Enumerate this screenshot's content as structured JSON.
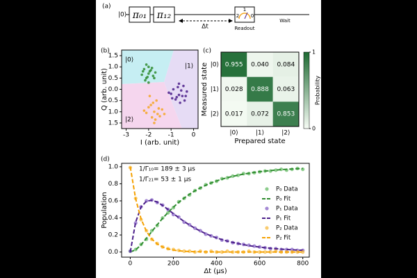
{
  "panels": [
    "(a)",
    "(b)",
    "(c)",
    "(d)"
  ],
  "circuit": {
    "input": "|0⟩",
    "gates": [
      "π₀₁",
      "π₁₂"
    ],
    "delay": "Δt",
    "readout": "Readout",
    "readout_levels": [
      "2",
      "1",
      "0"
    ],
    "wait": "Wait"
  },
  "chart_data": [
    {
      "type": "scatter",
      "xlabel": "I (arb. unit)",
      "ylabel": "Q (arb. unit)",
      "region_labels": [
        "|0⟩",
        "|1⟩",
        "|2⟩"
      ],
      "xlim": [
        -3.2,
        0.2
      ],
      "xticks": [
        -3,
        -2,
        -1,
        0
      ],
      "ylim": [
        -1.75,
        1.75
      ],
      "yticks": [
        1.5,
        {
          "value": 1.0,
          "label": "1.0"
        },
        0.5,
        {
          "value": 0.0,
          "label": "0.0"
        },
        {
          "value": -0.5,
          "label": "0.5"
        },
        {
          "value": -1.0,
          "label": "1.0"
        },
        {
          "value": -1.5,
          "label": "1.5"
        }
      ],
      "series": [
        {
          "color": "#2e8b2e",
          "x": [
            -2.0,
            -2.2,
            -1.8,
            -2.1,
            -1.9,
            -2.3,
            -1.7,
            -2.0,
            -2.15,
            -1.85,
            -2.05,
            -1.95,
            -2.25,
            -1.75,
            -2.0,
            -2.1
          ],
          "y": [
            0.7,
            0.9,
            0.6,
            0.5,
            0.85,
            0.65,
            0.75,
            1.0,
            0.4,
            0.95,
            0.55,
            0.8,
            0.8,
            0.5,
            0.3,
            1.1
          ]
        },
        {
          "color": "#4b1f8a",
          "x": [
            -0.65,
            -0.9,
            -0.4,
            -0.7,
            -0.5,
            -1.0,
            -0.3,
            -0.6,
            -0.8,
            -0.45,
            -0.75,
            -0.55,
            -0.95,
            -0.35,
            -0.65,
            -1.1
          ],
          "y": [
            -0.25,
            0.0,
            -0.5,
            0.1,
            -0.3,
            -0.2,
            -0.1,
            -0.6,
            -0.45,
            0.15,
            -0.35,
            -0.05,
            -0.4,
            -0.3,
            0.25,
            -0.15
          ]
        },
        {
          "color": "#f5a623",
          "x": [
            -1.75,
            -2.0,
            -1.5,
            -1.8,
            -1.6,
            -2.1,
            -1.4,
            -1.7,
            -1.9,
            -1.55,
            -1.85,
            -1.65,
            -2.2,
            -1.3,
            -1.75,
            -1.95
          ],
          "y": [
            -1.0,
            -0.8,
            -1.2,
            -0.6,
            -1.1,
            -1.05,
            -0.9,
            -1.35,
            -0.7,
            -0.85,
            -1.25,
            -0.5,
            -0.95,
            -1.1,
            -1.5,
            -0.3
          ]
        }
      ]
    },
    {
      "type": "heatmap",
      "xlabel": "Prepared state",
      "ylabel": "Measured state",
      "x_categories": [
        "|0⟩",
        "|1⟩",
        "|2⟩"
      ],
      "y_categories": [
        "|0⟩",
        "|1⟩",
        "|2⟩"
      ],
      "values": [
        [
          0.955,
          0.04,
          0.084
        ],
        [
          0.028,
          0.888,
          0.063
        ],
        [
          0.017,
          0.072,
          0.853
        ]
      ],
      "value_labels": [
        [
          "0.955",
          "0.040",
          "0.084"
        ],
        [
          "0.028",
          "0.888",
          "0.063"
        ],
        [
          "0.017",
          "0.072",
          "0.853"
        ]
      ],
      "colormap": [
        "#f7fcf5",
        "#1d6a32"
      ],
      "colorbar_label": "Probability",
      "colorbar_lim": [
        0,
        1
      ],
      "colorbar_ticks": [
        1,
        0
      ]
    },
    {
      "type": "line",
      "xlabel": "Δt (μs)",
      "ylabel": "Population",
      "annotations": [
        "1/Γ₁₀= 189 ± 3 μs",
        "1/Γ₂₁=  53 ± 1 μs"
      ],
      "xlim": [
        -40,
        830
      ],
      "xticks": [
        0,
        200,
        400,
        600,
        800
      ],
      "ylim": [
        -0.06,
        1.04
      ],
      "yticks": [
        {
          "value": 0.0,
          "label": "0.0"
        },
        {
          "value": 0.2,
          "label": "0.2"
        },
        {
          "value": 0.4,
          "label": "0.4"
        },
        {
          "value": 0.6,
          "label": "0.6"
        },
        {
          "value": 0.8,
          "label": "0.8"
        },
        {
          "value": 1.0,
          "label": "1.0"
        }
      ],
      "legend": "right",
      "x": [
        0,
        25,
        50,
        75,
        100,
        125,
        150,
        175,
        200,
        225,
        250,
        275,
        300,
        325,
        350,
        375,
        400,
        425,
        450,
        475,
        500,
        525,
        550,
        575,
        600,
        625,
        650,
        675,
        700,
        725,
        750,
        775,
        800
      ],
      "series": [
        {
          "name": "P₀ Data",
          "color": "#5cb85c",
          "style": "markers",
          "values": [
            0.01,
            0.03,
            0.09,
            0.15,
            0.25,
            0.31,
            0.4,
            0.46,
            0.52,
            0.59,
            0.63,
            0.67,
            0.72,
            0.75,
            0.79,
            0.81,
            0.83,
            0.86,
            0.87,
            0.89,
            0.9,
            0.92,
            0.92,
            0.93,
            0.94,
            0.95,
            0.95,
            0.96,
            0.97,
            0.96,
            0.97,
            0.98,
            0.97
          ]
        },
        {
          "name": "P₀ Fit",
          "color": "#2e8b2e",
          "style": "dashed",
          "values": [
            0,
            0.026,
            0.084,
            0.161,
            0.241,
            0.32,
            0.395,
            0.464,
            0.527,
            0.583,
            0.633,
            0.678,
            0.718,
            0.752,
            0.783,
            0.81,
            0.834,
            0.854,
            0.872,
            0.887,
            0.901,
            0.914,
            0.924,
            0.934,
            0.942,
            0.949,
            0.955,
            0.961,
            0.966,
            0.97,
            0.974,
            0.977,
            0.98
          ]
        },
        {
          "name": "P₁ Data",
          "color": "#7e57c2",
          "style": "markers",
          "values": [
            0.01,
            0.34,
            0.53,
            0.6,
            0.61,
            0.58,
            0.55,
            0.5,
            0.44,
            0.41,
            0.35,
            0.32,
            0.28,
            0.25,
            0.21,
            0.19,
            0.17,
            0.14,
            0.13,
            0.11,
            0.1,
            0.09,
            0.08,
            0.07,
            0.06,
            0.05,
            0.04,
            0.04,
            0.03,
            0.03,
            0.03,
            0.02,
            0.02
          ]
        },
        {
          "name": "P₁ Fit",
          "color": "#4b1f8a",
          "style": "dashed",
          "values": [
            0,
            0.35,
            0.527,
            0.596,
            0.607,
            0.586,
            0.546,
            0.499,
            0.45,
            0.403,
            0.358,
            0.316,
            0.279,
            0.246,
            0.216,
            0.189,
            0.166,
            0.146,
            0.128,
            0.113,
            0.0986,
            0.0863,
            0.0756,
            0.0663,
            0.0581,
            0.0509,
            0.0446,
            0.0391,
            0.0342,
            0.03,
            0.0263,
            0.0231,
            0.0202
          ]
        },
        {
          "name": "P₂ Data",
          "color": "#f7b733",
          "style": "markers",
          "values": [
            0.99,
            0.63,
            0.38,
            0.25,
            0.15,
            0.1,
            0.06,
            0.04,
            0.03,
            0.02,
            0.01,
            0.01,
            0,
            0.01,
            0,
            0.01,
            0,
            0,
            0.01,
            0,
            0,
            0,
            0.01,
            0,
            0,
            0,
            0,
            0.01,
            0,
            0,
            0,
            0,
            0
          ]
        },
        {
          "name": "P₂ Fit",
          "color": "#f5a000",
          "style": "dashed",
          "values": [
            1,
            0.624,
            0.389,
            0.243,
            0.152,
            0.0945,
            0.059,
            0.0368,
            0.023,
            0.0143,
            0.0089,
            0.0056,
            0.0035,
            0.0022,
            0.0014,
            0.0009,
            0.0005,
            0.0003,
            0.0002,
            0.0001,
            0,
            0,
            0,
            0,
            0,
            0,
            0,
            0,
            0,
            0,
            0,
            0,
            0
          ]
        }
      ]
    }
  ]
}
